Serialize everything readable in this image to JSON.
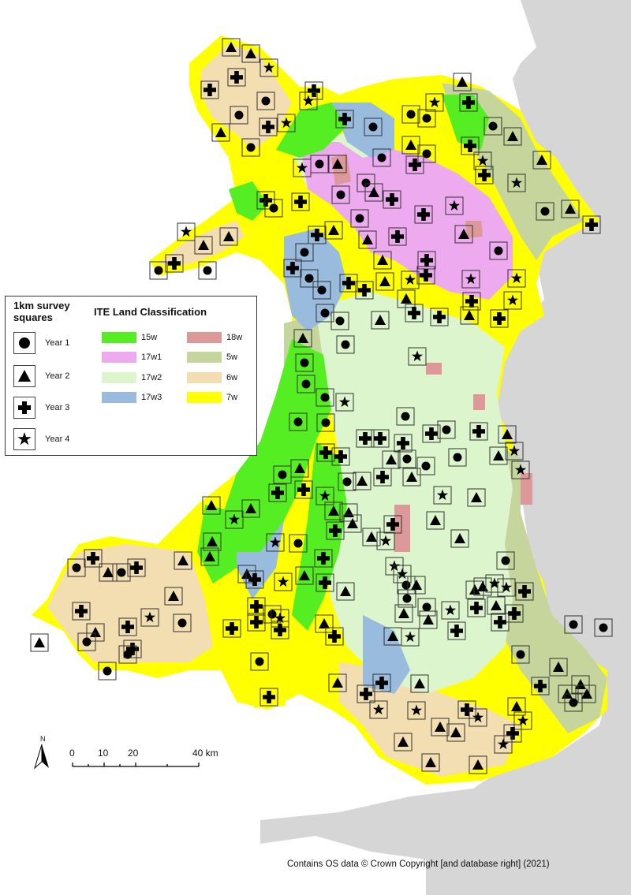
{
  "legend": {
    "survey_title": "1km survey\nsquares",
    "survey_items": [
      {
        "label": "Year 1",
        "symbol": "circle"
      },
      {
        "label": "Year 2",
        "symbol": "triangle"
      },
      {
        "label": "Year 3",
        "symbol": "cross"
      },
      {
        "label": "Year 4",
        "symbol": "star"
      }
    ],
    "landclass_title": "ITE Land Classification",
    "landclass_items": [
      {
        "label": "15w",
        "color": "#55ee22"
      },
      {
        "label": "17w1",
        "color": "#eeaaee"
      },
      {
        "label": "17w2",
        "color": "#ddf5cc"
      },
      {
        "label": "17w3",
        "color": "#99bbdd"
      },
      {
        "label": "18w",
        "color": "#dd9999"
      },
      {
        "label": "5w",
        "color": "#c5d59c"
      },
      {
        "label": "6w",
        "color": "#f2deb0"
      },
      {
        "label": "7w",
        "color": "#ffff00"
      }
    ]
  },
  "scale_bar": {
    "labels": [
      "0",
      "10",
      "20",
      "40 km"
    ]
  },
  "north_label": "N",
  "credit": "Contains OS data © Crown Copyright [and database right] (2021)",
  "colors": {
    "sea_land_grey": "#d6d6d6",
    "background": "#ffffff",
    "symbol": "#000000"
  }
}
